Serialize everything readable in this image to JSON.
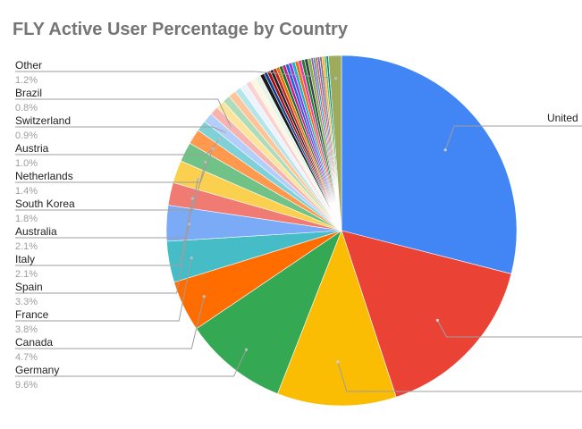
{
  "chart_data": {
    "type": "pie",
    "title": "FLY Active User Percentage by Country",
    "slices": [
      {
        "label": "United",
        "value": 29.0,
        "color": "#4285f4"
      },
      {
        "label": "",
        "value": 16.0,
        "color": "#ea4335"
      },
      {
        "label": "",
        "value": 11.0,
        "color": "#fbbc04"
      },
      {
        "label": "Germany",
        "value": 9.6,
        "color": "#34a853",
        "display": "9.6%"
      },
      {
        "label": "Canada",
        "value": 4.7,
        "color": "#ff6d01",
        "display": "4.7%"
      },
      {
        "label": "France",
        "value": 3.8,
        "color": "#46bdc6",
        "display": "3.8%"
      },
      {
        "label": "Spain",
        "value": 3.3,
        "color": "#7baaf7",
        "display": "3.3%"
      },
      {
        "label": "Italy",
        "value": 2.1,
        "color": "#f07b72",
        "display": "2.1%"
      },
      {
        "label": "Australia",
        "value": 2.1,
        "color": "#fcd04f",
        "display": "2.1%"
      },
      {
        "label": "South Korea",
        "value": 1.8,
        "color": "#71c287",
        "display": "1.8%"
      },
      {
        "label": "Netherlands",
        "value": 1.4,
        "color": "#ff994d",
        "display": "1.4%"
      },
      {
        "label": "Austria",
        "value": 1.0,
        "color": "#7ed1d7",
        "display": "1.0%"
      },
      {
        "label": "Switzerland",
        "value": 0.9,
        "color": "#b3cefb",
        "display": "0.9%"
      },
      {
        "label": "Brazil",
        "value": 0.8,
        "color": "#f7b4ae",
        "display": "0.8%"
      },
      {
        "label": "",
        "value": 0.8,
        "color": "#fde49b"
      },
      {
        "label": "",
        "value": 0.7,
        "color": "#aedcba"
      },
      {
        "label": "",
        "value": 0.7,
        "color": "#ffc599"
      },
      {
        "label": "",
        "value": 0.6,
        "color": "#b5e5e8"
      },
      {
        "label": "",
        "value": 0.6,
        "color": "#ecf3fe"
      },
      {
        "label": "",
        "value": 0.5,
        "color": "#fad2cf"
      },
      {
        "label": "",
        "value": 0.5,
        "color": "#fef6e0"
      },
      {
        "label": "",
        "value": 0.5,
        "color": "#e6f4ea"
      },
      {
        "label": "",
        "value": 0.4,
        "color": "#1a1a1a"
      },
      {
        "label": "",
        "value": 0.3,
        "color": "#0b3d91"
      },
      {
        "label": "",
        "value": 0.3,
        "color": "#a50e0e"
      },
      {
        "label": "",
        "value": 0.3,
        "color": "#202124"
      },
      {
        "label": "",
        "value": 0.3,
        "color": "#c5221f"
      },
      {
        "label": "",
        "value": 0.3,
        "color": "#e37400"
      },
      {
        "label": "",
        "value": 0.3,
        "color": "#137333"
      },
      {
        "label": "",
        "value": 0.3,
        "color": "#d01884"
      },
      {
        "label": "",
        "value": 0.3,
        "color": "#1967d2"
      },
      {
        "label": "",
        "value": 0.3,
        "color": "#9334e6"
      },
      {
        "label": "",
        "value": 0.3,
        "color": "#12b5cb"
      },
      {
        "label": "",
        "value": 0.3,
        "color": "#e8710a"
      },
      {
        "label": "",
        "value": 0.3,
        "color": "#f538a0"
      },
      {
        "label": "",
        "value": 0.3,
        "color": "#188038"
      },
      {
        "label": "",
        "value": 0.3,
        "color": "#3c4043"
      },
      {
        "label": "",
        "value": 0.3,
        "color": "#7cb342"
      },
      {
        "label": "",
        "value": 0.2,
        "color": "#ab47bc"
      },
      {
        "label": "",
        "value": 0.2,
        "color": "#26a69a"
      },
      {
        "label": "",
        "value": 0.2,
        "color": "#ef5350"
      },
      {
        "label": "",
        "value": 0.2,
        "color": "#5c6bc0"
      },
      {
        "label": "",
        "value": 0.2,
        "color": "#8d6e63"
      },
      {
        "label": "",
        "value": 0.2,
        "color": "#ffa726"
      },
      {
        "label": "",
        "value": 0.2,
        "color": "#66bb6a"
      },
      {
        "label": "",
        "value": 0.2,
        "color": "#00897b"
      },
      {
        "label": "Other",
        "value": 1.2,
        "color": "#9eab5c",
        "display": "1.2%"
      }
    ]
  }
}
